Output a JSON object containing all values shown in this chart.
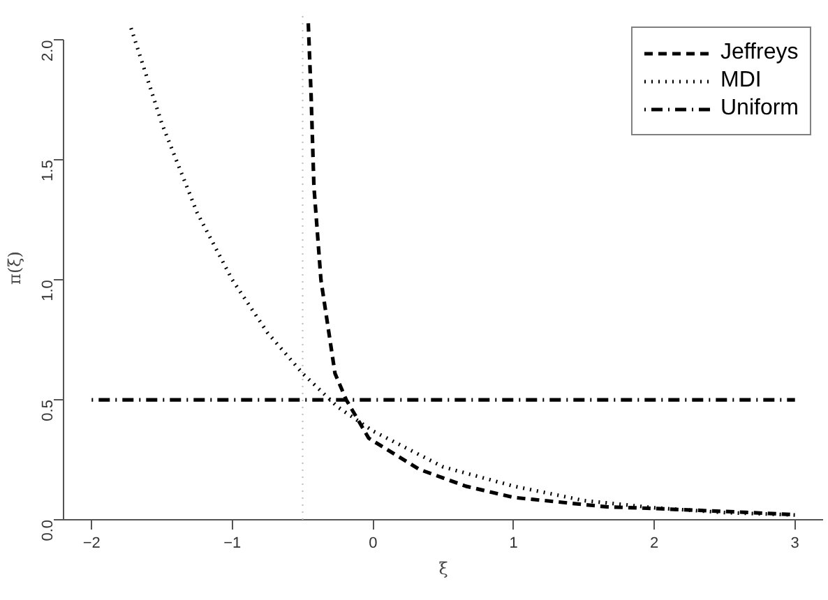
{
  "chart_data": {
    "type": "line",
    "xlabel": "ξ",
    "ylabel": "π(ξ)",
    "xlim": [
      -2.2,
      3.2
    ],
    "ylim": [
      0,
      2.1
    ],
    "xticks": [
      {
        "value": -2,
        "label": "−2"
      },
      {
        "value": -1,
        "label": "−1"
      },
      0,
      1,
      2,
      3
    ],
    "yticks": [
      {
        "value": 0,
        "label": "0.0"
      },
      0.5,
      {
        "value": 1,
        "label": "1.0"
      },
      1.5,
      {
        "value": 2,
        "label": "2.0"
      }
    ],
    "grid": false,
    "legend": "top right",
    "marker": "none",
    "series": [
      {
        "name": "Jeffreys",
        "color": "#000000",
        "line_style": "dashed",
        "x": [
          -0.46,
          -0.44,
          -0.42,
          -0.37,
          -0.27,
          -0.19,
          -0.03,
          0.33,
          0.66,
          1.0,
          1.66,
          2.0,
          2.65,
          3.0
        ],
        "values": [
          2.07,
          1.77,
          1.39,
          1.0,
          0.61,
          0.5,
          0.34,
          0.21,
          0.14,
          0.093,
          0.054,
          0.047,
          0.031,
          0.021
        ]
      },
      {
        "name": "MDI",
        "color": "#000000",
        "line_style": "dotted",
        "x": [
          -1.72,
          -1.5,
          -1.25,
          -1.0,
          -0.75,
          -0.5,
          -0.25,
          0,
          0.5,
          1.0,
          1.5,
          2.0,
          2.5,
          3.0
        ],
        "values": [
          2.05,
          1.65,
          1.28,
          1.0,
          0.78,
          0.61,
          0.47,
          0.37,
          0.22,
          0.14,
          0.08,
          0.05,
          0.03,
          0.02
        ]
      },
      {
        "name": "Uniform",
        "color": "#000000",
        "line_style": "dashdot",
        "x": [
          -2,
          3
        ],
        "values": [
          0.5,
          0.5
        ]
      }
    ],
    "ref_lines": [
      {
        "axis": "x",
        "value": -0.5,
        "color": "#bbbbbb",
        "line_style": "dotted"
      }
    ]
  }
}
